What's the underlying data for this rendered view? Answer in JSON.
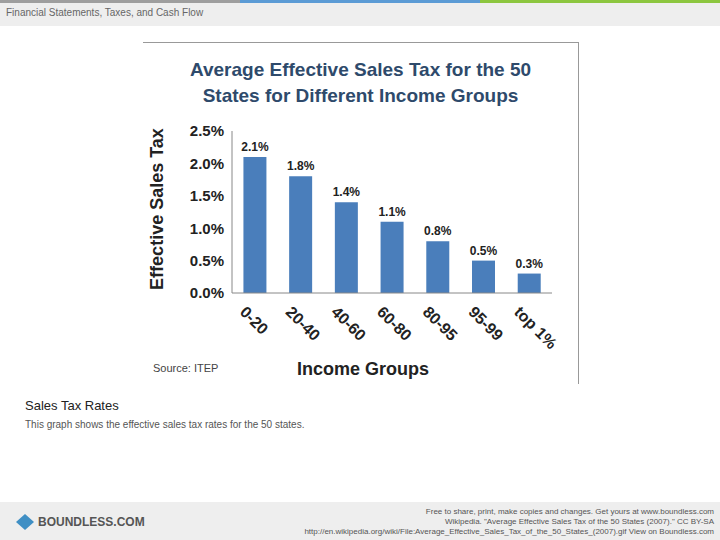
{
  "chart_data": {
    "type": "bar",
    "title": "Average Effective Sales Tax for the 50 States for Different Income Groups",
    "x_label": "Income Groups",
    "y_label": "Effective Sales Tax",
    "source": "Source: ITEP",
    "categories": [
      "0-20",
      "20-40",
      "40-60",
      "60-80",
      "80-95",
      "95-99",
      "top 1%"
    ],
    "values": [
      2.1,
      1.8,
      1.4,
      1.1,
      0.8,
      0.5,
      0.3
    ],
    "value_labels": [
      "2.1%",
      "1.8%",
      "1.4%",
      "1.1%",
      "0.8%",
      "0.5%",
      "0.3%"
    ],
    "color": "#4a7ebb",
    "ylim": [
      0,
      2.5
    ],
    "yticks": [
      {
        "value": 0,
        "label": "0.0%"
      },
      {
        "value": 0.5,
        "label": "0.5%"
      },
      {
        "value": 1,
        "label": "1.0%"
      },
      {
        "value": 1.5,
        "label": "1.5%"
      },
      {
        "value": 2,
        "label": "2.0%"
      },
      {
        "value": 2.5,
        "label": "2.5%"
      }
    ],
    "grid": false,
    "data_labels": true
  },
  "slide": {
    "header": "Financial Statements, Taxes, and Cash Flow",
    "caption": "Sales Tax Rates",
    "description": "This graph shows the effective sales tax rates for the 50 states.",
    "logo": "BOUNDLESS.COM",
    "footer": [
      "Free to share, print, make copies and changes. Get yours at www.boundless.com",
      "Wikipedia. \"Average Effective Sales Tax of the 50 States (2007).\" CC BY-SA",
      "http://en.wikipedia.org/wiki/File:Average_Effective_Sales_Tax_of_the_50_States_(2007).gif View on Boundless.com"
    ]
  }
}
